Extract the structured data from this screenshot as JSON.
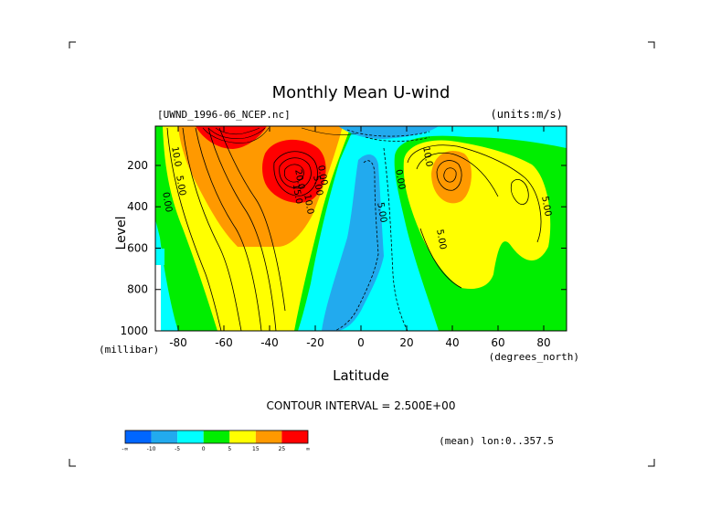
{
  "chart_data": {
    "type": "heatmap",
    "title": "Monthly Mean U-wind",
    "dataset_label": "[UWND_1996-06_NCEP.nc]",
    "units_label": "(units:m/s)",
    "xlabel": "Latitude",
    "x_units": "(degrees_north)",
    "ylabel": "Level",
    "y_units": "(millibar)",
    "x_ticks": [
      -80,
      -60,
      -40,
      -20,
      0,
      20,
      40,
      60,
      80
    ],
    "x_tick_labels": [
      "-80",
      "-60",
      "-40",
      "-20",
      "0",
      "20",
      "40",
      "60",
      "80"
    ],
    "xlim": [
      -90,
      90
    ],
    "y_ticks": [
      200,
      400,
      600,
      800,
      1000
    ],
    "y_tick_labels": [
      "200",
      "400",
      "600",
      "800",
      "1000"
    ],
    "ylim": [
      1000,
      10
    ],
    "contour_interval_text": "CONTOUR INTERVAL = 2.500E+00",
    "mean_note": "(mean) lon:0..357.5",
    "contour_labels": [
      {
        "text": "10.0",
        "lat": -82,
        "lev": 160
      },
      {
        "text": "5.00",
        "lat": -80,
        "lev": 300
      },
      {
        "text": "0.00",
        "lat": -86,
        "lev": 380
      },
      {
        "text": "20.0",
        "lat": -28,
        "lev": 270
      },
      {
        "text": "15.0",
        "lat": -29,
        "lev": 340
      },
      {
        "text": "10.0",
        "lat": -24,
        "lev": 390
      },
      {
        "text": "5.00",
        "lat": -20,
        "lev": 300
      },
      {
        "text": "0.00",
        "lat": -18,
        "lev": 250
      },
      {
        "text": "5.00",
        "lat": 8,
        "lev": 430
      },
      {
        "text": "0.00",
        "lat": 16,
        "lev": 270
      },
      {
        "text": "10.0",
        "lat": 28,
        "lev": 160
      },
      {
        "text": "5.00",
        "lat": 34,
        "lev": 560
      },
      {
        "text": "5.00",
        "lat": 80,
        "lev": 400
      }
    ],
    "colorbar": {
      "colors": [
        "#0066ff",
        "#22aaee",
        "#00ffff",
        "#00ee00",
        "#ffff00",
        "#ff9900",
        "#ff0000"
      ],
      "labels": [
        "-∞",
        "-10",
        "-5",
        "0",
        "5",
        "15",
        "25",
        "∞"
      ]
    }
  }
}
